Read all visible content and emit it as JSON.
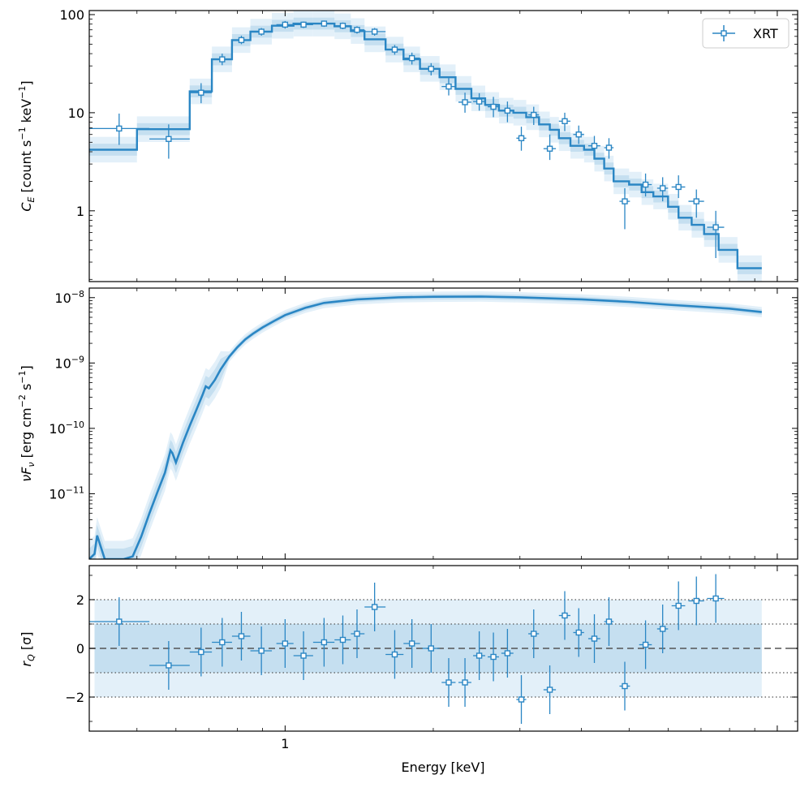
{
  "chart_data": [
    {
      "type": "line",
      "panel": "counts",
      "ylabel_main": "C",
      "ylabel_sub": "E",
      "ylabel_unit": " [count s",
      "ylabel_unit_sup1": "−1",
      "ylabel_unit_mid": " keV",
      "ylabel_unit_sup2": "−1",
      "ylabel_close": "]",
      "xscale": "log",
      "yscale": "log",
      "xlim": [
        0.4,
        11.0
      ],
      "ylim": [
        0.19,
        110
      ],
      "ytick_values": [
        1,
        10,
        100
      ],
      "ytick_labels": [
        "1",
        "10",
        "100"
      ],
      "legend": {
        "position": "top-right",
        "entries": [
          "XRT"
        ]
      },
      "series": [
        {
          "name": "XRT",
          "kind": "data",
          "points": [
            {
              "x": 0.46,
              "xlo": 0.4,
              "xhi": 0.53,
              "y": 6.9,
              "ylo": 4.7,
              "yhi": 9.8
            },
            {
              "x": 0.58,
              "xlo": 0.53,
              "xhi": 0.64,
              "y": 5.4,
              "ylo": 3.4,
              "yhi": 7.6
            },
            {
              "x": 0.675,
              "xlo": 0.64,
              "xhi": 0.71,
              "y": 16.0,
              "ylo": 12.5,
              "yhi": 20.0
            },
            {
              "x": 0.745,
              "xlo": 0.71,
              "xhi": 0.78,
              "y": 35.0,
              "ylo": 30.5,
              "yhi": 40.0
            },
            {
              "x": 0.815,
              "xlo": 0.78,
              "xhi": 0.85,
              "y": 55.0,
              "ylo": 50.0,
              "yhi": 61.0
            },
            {
              "x": 0.895,
              "xlo": 0.85,
              "xhi": 0.94,
              "y": 67.0,
              "ylo": 61.0,
              "yhi": 73.0
            },
            {
              "x": 1.0,
              "xlo": 0.96,
              "xhi": 1.04,
              "y": 79.0,
              "ylo": 72.0,
              "yhi": 86.0
            },
            {
              "x": 1.09,
              "xlo": 1.04,
              "xhi": 1.14,
              "y": 79.0,
              "ylo": 73.0,
              "yhi": 85.0
            },
            {
              "x": 1.2,
              "xlo": 1.14,
              "xhi": 1.26,
              "y": 81.0,
              "ylo": 75.0,
              "yhi": 87.0
            },
            {
              "x": 1.31,
              "xlo": 1.26,
              "xhi": 1.36,
              "y": 77.0,
              "ylo": 71.0,
              "yhi": 83.0
            },
            {
              "x": 1.4,
              "xlo": 1.36,
              "xhi": 1.45,
              "y": 70.0,
              "ylo": 64.0,
              "yhi": 76.0
            },
            {
              "x": 1.52,
              "xlo": 1.45,
              "xhi": 1.6,
              "y": 67.0,
              "ylo": 61.0,
              "yhi": 73.0
            },
            {
              "x": 1.67,
              "xlo": 1.6,
              "xhi": 1.74,
              "y": 44.0,
              "ylo": 39.0,
              "yhi": 49.0
            },
            {
              "x": 1.81,
              "xlo": 1.74,
              "xhi": 1.88,
              "y": 36.0,
              "ylo": 31.0,
              "yhi": 41.0
            },
            {
              "x": 1.98,
              "xlo": 1.9,
              "xhi": 2.06,
              "y": 28.0,
              "ylo": 24.0,
              "yhi": 32.0
            },
            {
              "x": 2.15,
              "xlo": 2.08,
              "xhi": 2.22,
              "y": 18.5,
              "ylo": 15.0,
              "yhi": 22.5
            },
            {
              "x": 2.32,
              "xlo": 2.25,
              "xhi": 2.39,
              "y": 12.8,
              "ylo": 10.0,
              "yhi": 16.0
            },
            {
              "x": 2.48,
              "xlo": 2.41,
              "xhi": 2.55,
              "y": 13.0,
              "ylo": 10.5,
              "yhi": 15.8
            },
            {
              "x": 2.65,
              "xlo": 2.58,
              "xhi": 2.72,
              "y": 11.5,
              "ylo": 9.0,
              "yhi": 14.5
            },
            {
              "x": 2.83,
              "xlo": 2.75,
              "xhi": 2.91,
              "y": 10.5,
              "ylo": 8.0,
              "yhi": 13.0
            },
            {
              "x": 3.02,
              "xlo": 2.95,
              "xhi": 3.09,
              "y": 5.5,
              "ylo": 4.1,
              "yhi": 7.2
            },
            {
              "x": 3.2,
              "xlo": 3.12,
              "xhi": 3.28,
              "y": 9.5,
              "ylo": 7.5,
              "yhi": 11.5
            },
            {
              "x": 3.45,
              "xlo": 3.35,
              "xhi": 3.55,
              "y": 4.3,
              "ylo": 3.3,
              "yhi": 6.0
            },
            {
              "x": 3.7,
              "xlo": 3.6,
              "xhi": 3.8,
              "y": 8.2,
              "ylo": 6.5,
              "yhi": 10.0
            },
            {
              "x": 3.95,
              "xlo": 3.85,
              "xhi": 4.05,
              "y": 6.0,
              "ylo": 4.8,
              "yhi": 7.4
            },
            {
              "x": 4.25,
              "xlo": 4.13,
              "xhi": 4.37,
              "y": 4.6,
              "ylo": 3.6,
              "yhi": 5.8
            },
            {
              "x": 4.55,
              "xlo": 4.45,
              "xhi": 4.65,
              "y": 4.4,
              "ylo": 3.4,
              "yhi": 5.5
            },
            {
              "x": 4.9,
              "xlo": 4.78,
              "xhi": 5.02,
              "y": 1.25,
              "ylo": 0.65,
              "yhi": 1.7
            },
            {
              "x": 5.4,
              "xlo": 5.24,
              "xhi": 5.56,
              "y": 1.85,
              "ylo": 1.4,
              "yhi": 2.4
            },
            {
              "x": 5.85,
              "xlo": 5.7,
              "xhi": 6.0,
              "y": 1.7,
              "ylo": 1.25,
              "yhi": 2.2
            },
            {
              "x": 6.3,
              "xlo": 6.1,
              "xhi": 6.5,
              "y": 1.75,
              "ylo": 1.35,
              "yhi": 2.3
            },
            {
              "x": 6.85,
              "xlo": 6.6,
              "xhi": 7.1,
              "y": 1.25,
              "ylo": 0.85,
              "yhi": 1.65
            },
            {
              "x": 7.5,
              "xlo": 7.2,
              "xhi": 7.8,
              "y": 0.68,
              "ylo": 0.33,
              "yhi": 1.0
            }
          ]
        },
        {
          "kind": "model",
          "edges": [
            0.4,
            0.5,
            0.64,
            0.71,
            0.78,
            0.85,
            0.94,
            1.04,
            1.14,
            1.26,
            1.36,
            1.45,
            1.6,
            1.74,
            1.88,
            2.06,
            2.22,
            2.39,
            2.55,
            2.72,
            2.91,
            3.09,
            3.28,
            3.45,
            3.6,
            3.8,
            4.05,
            4.25,
            4.45,
            4.65,
            5.0,
            5.3,
            5.6,
            6.0,
            6.3,
            6.7,
            7.1,
            7.6,
            8.3,
            9.3
          ],
          "values": [
            4.2,
            6.8,
            16.5,
            35.0,
            55.0,
            67.0,
            77.0,
            81.0,
            81.0,
            76.0,
            68.0,
            56.0,
            44.0,
            35.0,
            28.0,
            23.0,
            17.5,
            14.0,
            12.0,
            10.5,
            10.0,
            9.0,
            7.6,
            6.7,
            5.5,
            4.6,
            4.2,
            3.4,
            2.7,
            2.0,
            1.85,
            1.55,
            1.4,
            1.1,
            0.85,
            0.72,
            0.58,
            0.4,
            0.26
          ]
        }
      ]
    },
    {
      "type": "line",
      "panel": "nuFnu",
      "ylabel_nu": "ν",
      "ylabel_F": "F",
      "ylabel_sub": "ν",
      "ylabel_unit": " [erg cm",
      "ylabel_unit_sup1": "−2",
      "ylabel_unit_mid": " s",
      "ylabel_unit_sup2": "−1",
      "ylabel_close": "]",
      "xscale": "log",
      "yscale": "log",
      "xlim": [
        0.4,
        11.0
      ],
      "ylim": [
        1e-12,
        1.4e-08
      ],
      "ytick_values": [
        1e-11,
        1e-10,
        1e-09,
        1e-08
      ],
      "ytick_base": "10",
      "ytick_exponents": [
        "−11",
        "−10",
        "−9",
        "−8"
      ],
      "series": [
        {
          "kind": "model",
          "x": [
            0.4,
            0.41,
            0.415,
            0.43,
            0.44,
            0.45,
            0.46,
            0.47,
            0.49,
            0.51,
            0.53,
            0.55,
            0.57,
            0.585,
            0.59,
            0.6,
            0.62,
            0.64,
            0.66,
            0.68,
            0.69,
            0.7,
            0.72,
            0.74,
            0.77,
            0.8,
            0.83,
            0.86,
            0.9,
            0.95,
            1.0,
            1.1,
            1.2,
            1.4,
            1.7,
            2.0,
            2.5,
            3.0,
            4.0,
            5.0,
            6.0,
            8.0,
            9.3
          ],
          "y": [
            1e-12,
            1.2e-12,
            2.3e-12,
            1e-12,
            1e-12,
            1e-12,
            1e-12,
            1e-12,
            1.1e-12,
            2.2e-12,
            5e-12,
            1.05e-11,
            2.1e-11,
            4.6e-11,
            4.2e-11,
            3e-11,
            6e-11,
            1.1e-10,
            1.9e-10,
            3.3e-10,
            4.4e-10,
            4.1e-10,
            5.5e-10,
            8e-10,
            1.25e-09,
            1.75e-09,
            2.3e-09,
            2.8e-09,
            3.5e-09,
            4.4e-09,
            5.4e-09,
            7e-09,
            8.3e-09,
            9.4e-09,
            1.01e-08,
            1.03e-08,
            1.04e-08,
            1.01e-08,
            9.4e-09,
            8.6e-09,
            7.8e-09,
            6.8e-09,
            6e-09
          ]
        }
      ]
    },
    {
      "type": "scatter",
      "panel": "residuals",
      "ylabel_main": "r",
      "ylabel_sub": "Q",
      "ylabel_unit": " [σ]",
      "xscale": "log",
      "xlim": [
        0.4,
        11.0
      ],
      "ylim": [
        -3.4,
        3.4
      ],
      "ytick_values": [
        -2,
        0,
        2
      ],
      "ytick_labels": [
        "−2",
        "0",
        "2"
      ],
      "xtick_values": [
        1
      ],
      "xtick_labels": [
        "1"
      ],
      "xlabel": "Energy [keV]",
      "bands": [
        {
          "lo": -1,
          "hi": 1
        },
        {
          "lo": -2,
          "hi": 2
        }
      ],
      "reference_lines": [
        -2,
        -1,
        0,
        1,
        2
      ],
      "series": [
        {
          "kind": "data",
          "points": [
            {
              "x": 0.46,
              "xlo": 0.4,
              "xhi": 0.53,
              "y": 1.1
            },
            {
              "x": 0.58,
              "xlo": 0.53,
              "xhi": 0.64,
              "y": -0.7
            },
            {
              "x": 0.675,
              "xlo": 0.64,
              "xhi": 0.71,
              "y": -0.15
            },
            {
              "x": 0.745,
              "xlo": 0.71,
              "xhi": 0.78,
              "y": 0.25
            },
            {
              "x": 0.815,
              "xlo": 0.78,
              "xhi": 0.85,
              "y": 0.5
            },
            {
              "x": 0.895,
              "xlo": 0.85,
              "xhi": 0.94,
              "y": -0.1
            },
            {
              "x": 1.0,
              "xlo": 0.96,
              "xhi": 1.04,
              "y": 0.2
            },
            {
              "x": 1.09,
              "xlo": 1.04,
              "xhi": 1.14,
              "y": -0.3
            },
            {
              "x": 1.2,
              "xlo": 1.14,
              "xhi": 1.26,
              "y": 0.25
            },
            {
              "x": 1.31,
              "xlo": 1.26,
              "xhi": 1.36,
              "y": 0.35
            },
            {
              "x": 1.4,
              "xlo": 1.36,
              "xhi": 1.45,
              "y": 0.6
            },
            {
              "x": 1.52,
              "xlo": 1.45,
              "xhi": 1.6,
              "y": 1.7
            },
            {
              "x": 1.67,
              "xlo": 1.6,
              "xhi": 1.74,
              "y": -0.25
            },
            {
              "x": 1.81,
              "xlo": 1.74,
              "xhi": 1.88,
              "y": 0.2
            },
            {
              "x": 1.98,
              "xlo": 1.9,
              "xhi": 2.06,
              "y": 0.0
            },
            {
              "x": 2.15,
              "xlo": 2.08,
              "xhi": 2.22,
              "y": -1.4
            },
            {
              "x": 2.32,
              "xlo": 2.25,
              "xhi": 2.39,
              "y": -1.4
            },
            {
              "x": 2.48,
              "xlo": 2.41,
              "xhi": 2.55,
              "y": -0.3
            },
            {
              "x": 2.65,
              "xlo": 2.58,
              "xhi": 2.72,
              "y": -0.35
            },
            {
              "x": 2.83,
              "xlo": 2.75,
              "xhi": 2.91,
              "y": -0.2
            },
            {
              "x": 3.02,
              "xlo": 2.95,
              "xhi": 3.09,
              "y": -2.1
            },
            {
              "x": 3.2,
              "xlo": 3.12,
              "xhi": 3.28,
              "y": 0.6
            },
            {
              "x": 3.45,
              "xlo": 3.35,
              "xhi": 3.55,
              "y": -1.7
            },
            {
              "x": 3.7,
              "xlo": 3.6,
              "xhi": 3.8,
              "y": 1.35
            },
            {
              "x": 3.95,
              "xlo": 3.85,
              "xhi": 4.05,
              "y": 0.65
            },
            {
              "x": 4.25,
              "xlo": 4.13,
              "xhi": 4.37,
              "y": 0.4
            },
            {
              "x": 4.55,
              "xlo": 4.45,
              "xhi": 4.65,
              "y": 1.1
            },
            {
              "x": 4.9,
              "xlo": 4.78,
              "xhi": 5.02,
              "y": -1.55
            },
            {
              "x": 5.4,
              "xlo": 5.24,
              "xhi": 5.56,
              "y": 0.15
            },
            {
              "x": 5.85,
              "xlo": 5.7,
              "xhi": 6.0,
              "y": 0.8
            },
            {
              "x": 6.3,
              "xlo": 6.1,
              "xhi": 6.5,
              "y": 1.75
            },
            {
              "x": 6.85,
              "xlo": 6.6,
              "xhi": 7.1,
              "y": 1.95
            },
            {
              "x": 7.5,
              "xlo": 7.2,
              "xhi": 7.8,
              "y": 2.05
            }
          ]
        }
      ]
    }
  ],
  "colors": {
    "series": "#2a86c4",
    "band_inner": "#c5dff0",
    "band_outer": "#e3f0f9",
    "reference": "#555555"
  }
}
